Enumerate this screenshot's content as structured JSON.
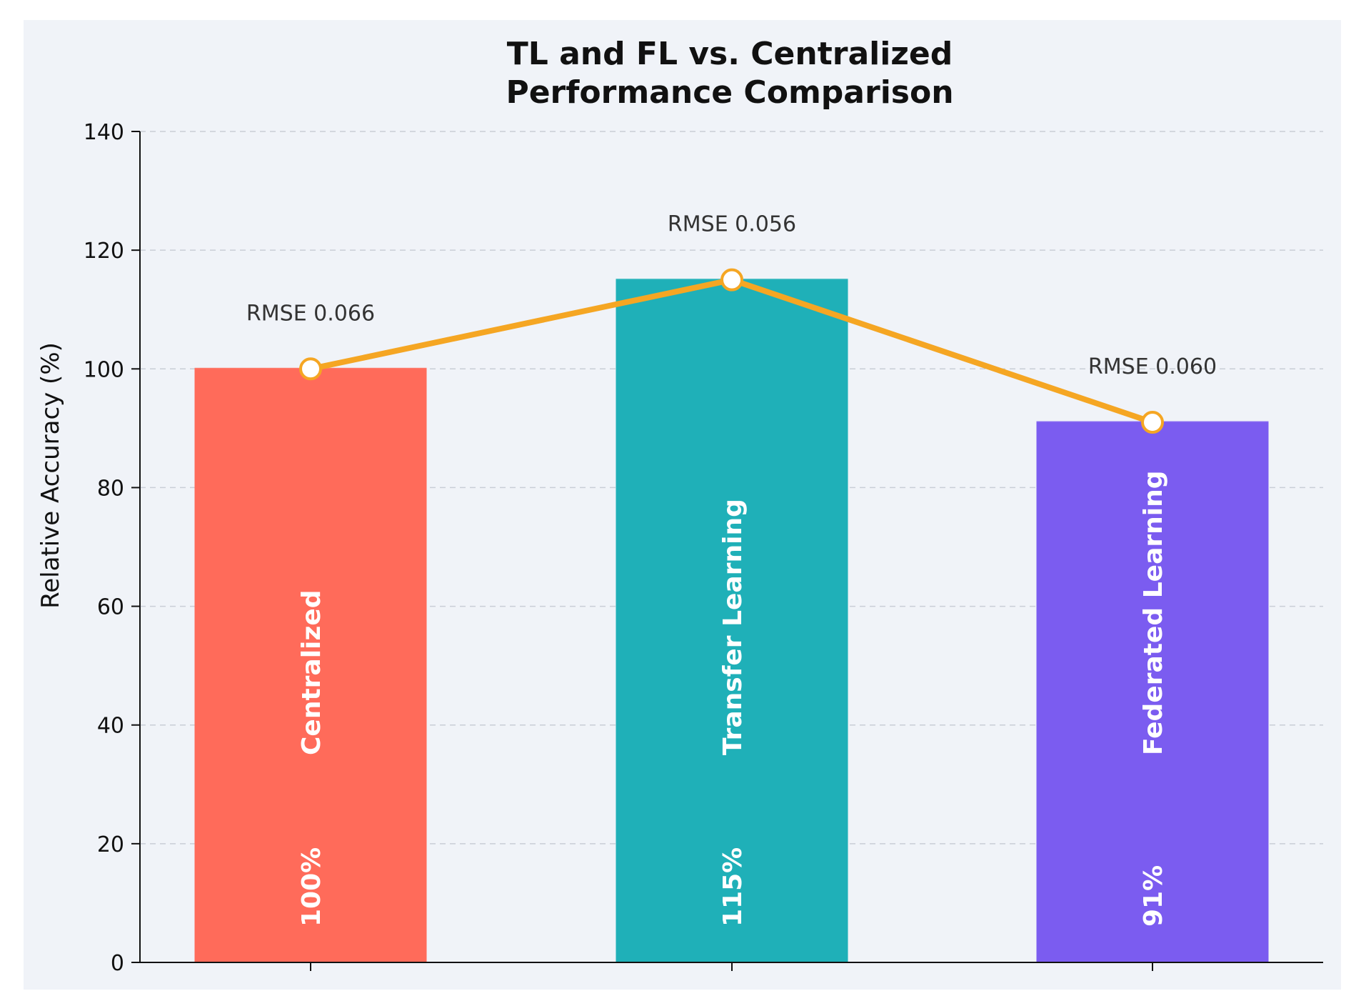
{
  "chart_data": {
    "type": "bar",
    "title": "TL and FL vs. Centralized\nPerformance Comparison",
    "title_lines": [
      "TL and FL vs. Centralized",
      "Performance Comparison"
    ],
    "xlabel": "",
    "ylabel": "Relative Accuracy (%)",
    "ylim": [
      0,
      140
    ],
    "yticks": [
      0,
      20,
      40,
      60,
      80,
      100,
      120,
      140
    ],
    "grid": "y-dashed",
    "background_color": "#f0f3f8",
    "line_color": "#f5a623",
    "categories": [
      "Centralized",
      "Transfer Learning",
      "Federated Learning"
    ],
    "series": [
      {
        "name": "Relative Accuracy",
        "values": [
          100,
          115,
          91
        ],
        "colors": [
          "#ff6b5a",
          "#1fb0b8",
          "#7b5cf0"
        ],
        "value_labels": [
          "100%",
          "115%",
          "91%"
        ]
      }
    ],
    "rmse_labels": [
      "RMSE 0.066",
      "RMSE 0.056",
      "RMSE 0.060"
    ],
    "overlay_line": {
      "name": "Relative Accuracy trend",
      "values": [
        100,
        115,
        91
      ]
    }
  }
}
